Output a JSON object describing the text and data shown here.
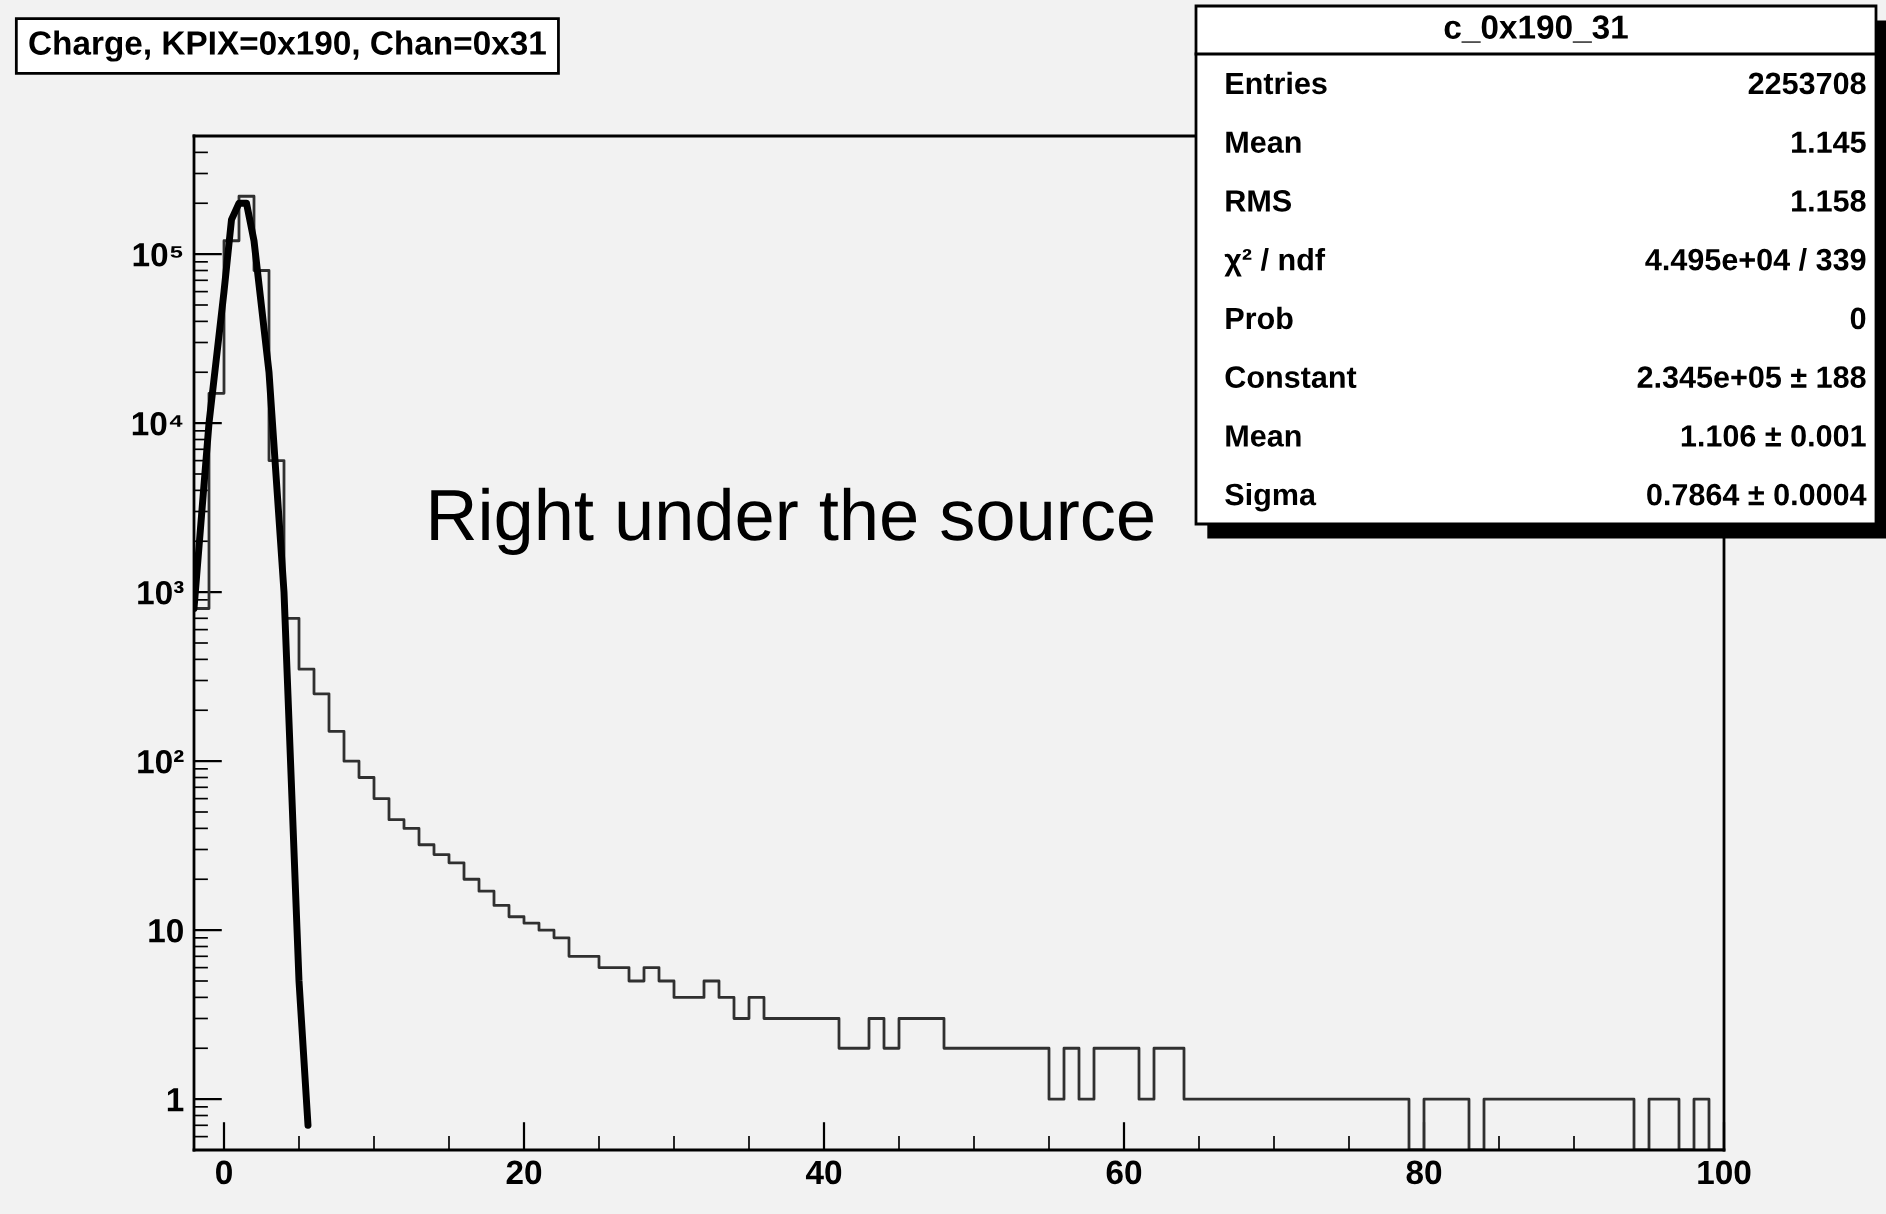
{
  "chart_data": {
    "type": "histogram",
    "title": "Charge, KPIX=0x190, Chan=0x31",
    "bins": [
      -2,
      -1,
      0,
      1,
      2,
      3,
      4,
      5,
      6,
      7,
      8,
      9,
      10,
      11,
      12,
      13,
      14,
      15,
      16,
      17,
      18,
      19,
      20,
      21,
      22,
      23,
      24,
      25,
      26,
      27,
      28,
      29,
      30,
      31,
      32,
      33,
      34,
      35,
      36,
      37,
      38,
      39,
      40,
      41,
      42,
      43,
      44,
      45,
      46,
      47,
      48,
      49,
      50,
      51,
      52,
      53,
      54,
      55,
      56,
      57,
      58,
      59,
      60,
      61,
      62,
      63,
      64,
      65,
      66,
      67,
      68,
      69,
      70,
      71,
      72,
      73,
      74,
      75,
      76,
      77,
      78,
      79,
      80,
      81,
      82,
      83,
      84,
      85,
      86,
      87,
      88,
      89,
      90,
      91,
      92,
      93,
      94,
      95,
      96,
      97,
      98,
      99,
      100
    ],
    "values": [
      800,
      15000,
      120000,
      220000,
      80000,
      6000,
      700,
      350,
      250,
      150,
      100,
      80,
      60,
      45,
      40,
      32,
      28,
      25,
      20,
      17,
      14,
      12,
      11,
      10,
      9,
      7,
      7,
      6,
      6,
      5,
      6,
      5,
      4,
      4,
      5,
      4,
      3,
      4,
      3,
      3,
      3,
      3,
      3,
      2,
      2,
      3,
      2,
      3,
      3,
      3,
      2,
      2,
      2,
      2,
      2,
      2,
      2,
      1,
      2,
      1,
      2,
      2,
      2,
      1,
      2,
      2,
      1,
      1,
      1,
      1,
      1,
      1,
      1,
      1,
      1,
      1,
      1,
      1,
      1,
      1,
      1,
      null,
      1,
      1,
      1,
      null,
      1,
      1,
      1,
      1,
      1,
      1,
      1,
      1,
      1,
      1,
      null,
      1,
      1,
      null,
      1,
      null
    ],
    "color": "#303030",
    "series": [
      {
        "type": "line",
        "color": "#000000",
        "x": [
          -2,
          -1,
          0,
          0.5,
          1,
          1.5,
          2,
          3,
          4,
          5,
          5.6
        ],
        "values": [
          800,
          10000,
          60000,
          160000,
          200000,
          200000,
          120000,
          20000,
          1000,
          5,
          0.7
        ]
      }
    ],
    "xlim": [
      -2,
      100
    ],
    "ylim": [
      0.5,
      500000
    ],
    "xticks": [
      0,
      20,
      40,
      60,
      80,
      100
    ],
    "yticks": [
      {
        "value": 1,
        "label": "1"
      },
      {
        "value": 10,
        "label": "10"
      },
      {
        "value": 100,
        "label": "10²"
      },
      {
        "value": 1000,
        "label": "10³"
      },
      {
        "value": 10000,
        "label": "10⁴"
      },
      {
        "value": 100000,
        "label": "10⁵"
      }
    ],
    "log": "y",
    "grid": false,
    "annotations": [
      "Right under the source",
      "c_0x190_31",
      "Entries",
      "2253708",
      "Mean",
      "1.145",
      "RMS",
      "1.158",
      "χ² / ndf",
      "4.495e+04 / 339",
      "Prob",
      "0",
      "Constant",
      "2.345e+05 ± 188",
      "Mean",
      "1.106 ± 0.001",
      "Sigma",
      "0.7864 ± 0.0004"
    ]
  }
}
